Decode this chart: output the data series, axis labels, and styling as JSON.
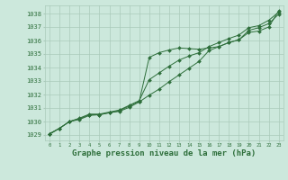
{
  "bg_color": "#cce8dc",
  "grid_color": "#aacaba",
  "line_color": "#2d6e3a",
  "xlabel": "Graphe pression niveau de la mer (hPa)",
  "xlabel_fontsize": 6.5,
  "ylabel_ticks": [
    1029,
    1030,
    1031,
    1032,
    1033,
    1034,
    1035,
    1036,
    1037,
    1038
  ],
  "xlim": [
    -0.5,
    23.5
  ],
  "ylim": [
    1028.6,
    1038.6
  ],
  "xticks": [
    0,
    1,
    2,
    3,
    4,
    5,
    6,
    7,
    8,
    9,
    10,
    11,
    12,
    13,
    14,
    15,
    16,
    17,
    18,
    19,
    20,
    21,
    22,
    23
  ],
  "series1_x": [
    0,
    1,
    2,
    3,
    4,
    5,
    6,
    7,
    8,
    9,
    10,
    11,
    12,
    13,
    14,
    15,
    16,
    17,
    18,
    19,
    20,
    21,
    22,
    23
  ],
  "series1_y": [
    1029.1,
    1029.5,
    1030.0,
    1030.15,
    1030.45,
    1030.5,
    1030.65,
    1030.75,
    1031.05,
    1031.45,
    1031.95,
    1032.4,
    1032.95,
    1033.45,
    1033.95,
    1034.45,
    1035.25,
    1035.55,
    1035.85,
    1036.05,
    1036.75,
    1036.95,
    1037.25,
    1037.95
  ],
  "series2_x": [
    0,
    1,
    2,
    3,
    4,
    5,
    6,
    7,
    8,
    9,
    10,
    11,
    12,
    13,
    14,
    15,
    16,
    17,
    18,
    19,
    20,
    21,
    22,
    23
  ],
  "series2_y": [
    1029.05,
    1029.5,
    1030.0,
    1030.2,
    1030.5,
    1030.5,
    1030.65,
    1030.8,
    1031.15,
    1031.5,
    1034.75,
    1035.1,
    1035.3,
    1035.45,
    1035.4,
    1035.35,
    1035.45,
    1035.55,
    1035.85,
    1036.05,
    1036.6,
    1036.7,
    1037.0,
    1038.2
  ],
  "series3_x": [
    0,
    1,
    2,
    3,
    4,
    5,
    6,
    7,
    8,
    9,
    10,
    11,
    12,
    13,
    14,
    15,
    16,
    17,
    18,
    19,
    20,
    21,
    22,
    23
  ],
  "series3_y": [
    1029.1,
    1029.5,
    1030.0,
    1030.25,
    1030.55,
    1030.55,
    1030.7,
    1030.85,
    1031.2,
    1031.55,
    1033.1,
    1033.6,
    1034.1,
    1034.55,
    1034.85,
    1035.1,
    1035.55,
    1035.85,
    1036.15,
    1036.4,
    1036.95,
    1037.1,
    1037.5,
    1038.1
  ]
}
